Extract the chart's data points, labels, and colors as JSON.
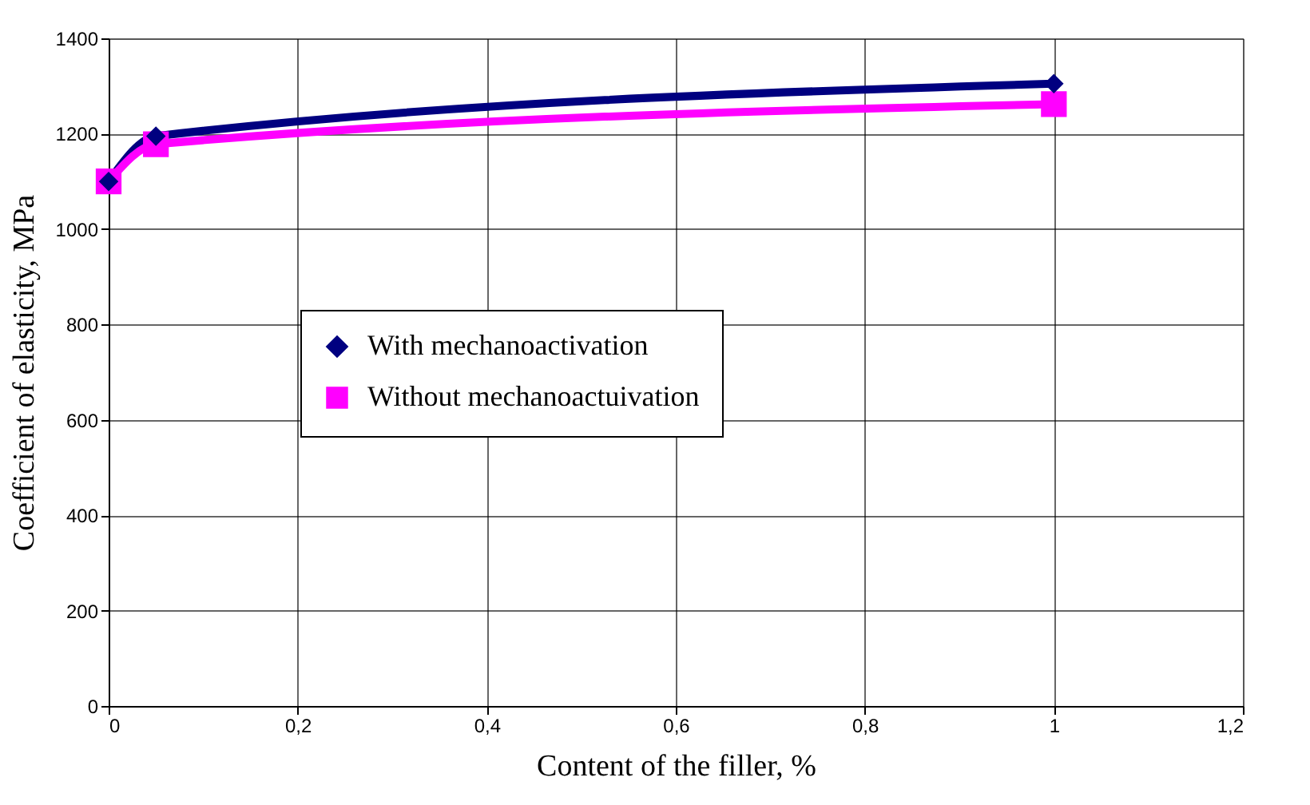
{
  "chart_data": {
    "type": "line",
    "xlabel": "Content of the filler, %",
    "ylabel": "Coefficient of elasticity, MPa",
    "x": [
      0,
      0.05,
      1
    ],
    "series": [
      {
        "name": "With mechanoactivation",
        "color": "#000080",
        "values": [
          1100,
          1195,
          1305
        ],
        "marker": "diamond"
      },
      {
        "name": "Without mechanoactuivation",
        "color": "#ff00ff",
        "values": [
          1100,
          1178,
          1262
        ],
        "marker": "square"
      }
    ],
    "xlim": [
      0,
      1.2
    ],
    "xticks": [
      0,
      {
        "value": 0.2,
        "label": "0,2"
      },
      {
        "value": 0.4,
        "label": "0,4"
      },
      {
        "value": 0.6,
        "label": "0,6"
      },
      {
        "value": 0.8,
        "label": "0,8"
      },
      1,
      {
        "value": 1.2,
        "label": "1,2"
      }
    ],
    "ylim": [
      0,
      1400
    ],
    "yticks": [
      0,
      200,
      400,
      600,
      800,
      1000,
      1200,
      1400
    ],
    "grid": true,
    "legend": "center",
    "line_style": "solid"
  }
}
